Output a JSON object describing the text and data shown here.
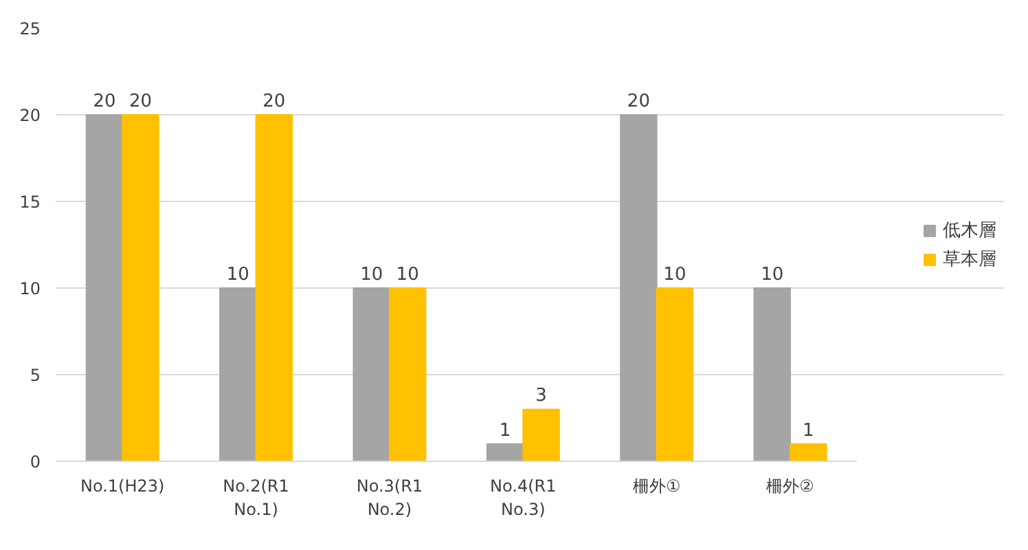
{
  "chart_data": {
    "type": "bar",
    "categories": [
      "No.1(H23)",
      "No.2(R1 No.1)",
      "No.3(R1 No.2)",
      "No.4(R1 No.3)",
      "柵外①",
      "柵外②"
    ],
    "series": [
      {
        "name": "低木層",
        "color": "#a5a5a5",
        "values": [
          20,
          10,
          10,
          1,
          20,
          10
        ]
      },
      {
        "name": "草本層",
        "color": "#ffc000",
        "values": [
          20,
          20,
          10,
          3,
          10,
          1
        ]
      }
    ],
    "ylim": [
      0,
      25
    ],
    "yticks": [
      0,
      5,
      10,
      15,
      20,
      25
    ],
    "grid": "y",
    "legend": "right",
    "data_labels": true
  }
}
